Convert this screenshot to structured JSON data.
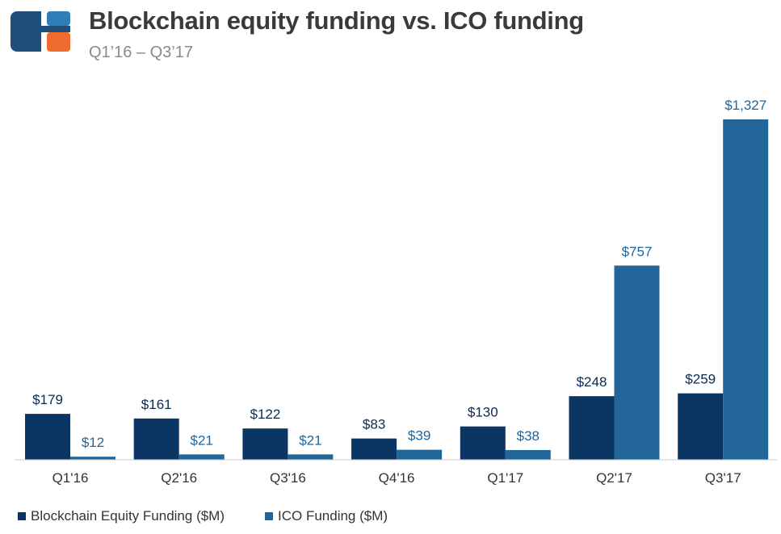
{
  "header": {
    "title": "Blockchain equity funding vs. ICO funding",
    "subtitle": "Q1’16 – Q3’17"
  },
  "colors": {
    "equity": "#0b3563",
    "ico": "#226598",
    "logo_blue": "#1f4e79",
    "logo_light": "#2e7db8",
    "logo_orange": "#ef6b2e",
    "baseline": "#cccccc"
  },
  "chart_data": {
    "type": "bar",
    "categories": [
      "Q1'16",
      "Q2'16",
      "Q3'16",
      "Q4'16",
      "Q1'17",
      "Q2'17",
      "Q3'17"
    ],
    "series": [
      {
        "name": "Blockchain Equity Funding ($M)",
        "values": [
          179,
          161,
          122,
          83,
          130,
          248,
          259
        ],
        "labels": [
          "$179",
          "$161",
          "$122",
          "$83",
          "$130",
          "$248",
          "$259"
        ]
      },
      {
        "name": "ICO Funding ($M)",
        "values": [
          12,
          21,
          21,
          39,
          38,
          757,
          1327
        ],
        "labels": [
          "$12",
          "$21",
          "$21",
          "$39",
          "$38",
          "$757",
          "$1,327"
        ]
      }
    ],
    "ylim": [
      0,
      1327
    ],
    "grid": false,
    "legend_position": "bottom-left"
  }
}
